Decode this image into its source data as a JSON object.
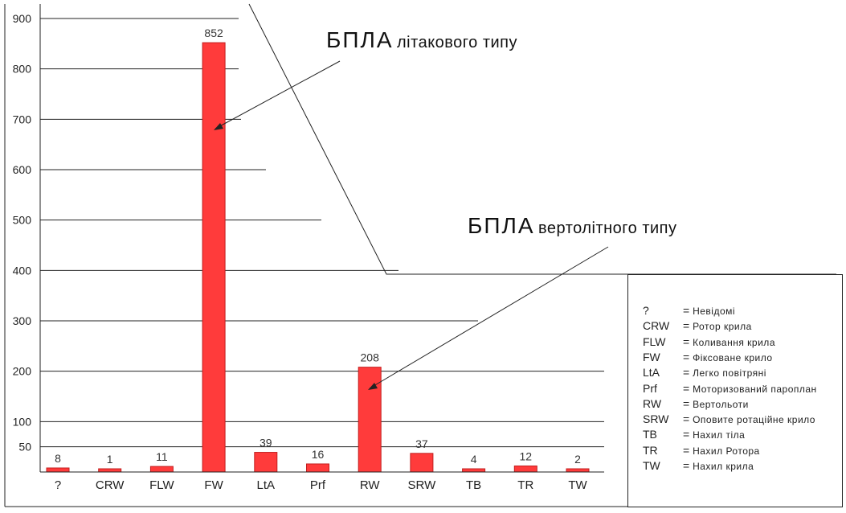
{
  "chart_data": {
    "type": "bar",
    "categories": [
      "?",
      "CRW",
      "FLW",
      "FW",
      "LtA",
      "Prf",
      "RW",
      "SRW",
      "TB",
      "TR",
      "TW"
    ],
    "values": [
      8,
      1,
      11,
      852,
      39,
      16,
      208,
      37,
      4,
      12,
      2
    ],
    "data_labels": [
      "8",
      "1",
      "11",
      "852",
      "39",
      "16",
      "208",
      "37",
      "4",
      "12",
      "2"
    ],
    "y_ticks": [
      50,
      100,
      200,
      300,
      400,
      500,
      600,
      700,
      800,
      900
    ],
    "y_tick_labels": [
      "50",
      "100",
      "200",
      "300",
      "400",
      "500",
      "600",
      "700",
      "800",
      "900"
    ],
    "ylim": [
      0,
      900
    ],
    "grid": true,
    "bar_color": "#ff3b3b",
    "title": "",
    "xlabel": "",
    "ylabel": ""
  },
  "annotations": [
    {
      "big": "БПЛА",
      "small": "літакового типу",
      "target": "FW"
    },
    {
      "big": "БПЛА",
      "small": "вертолітного типу",
      "target": "RW"
    }
  ],
  "legend": {
    "placement": "bottom-right",
    "separator": "=",
    "items": [
      {
        "code": "?",
        "desc": "Невідомі"
      },
      {
        "code": "CRW",
        "desc": "Ротор крила"
      },
      {
        "code": "FLW",
        "desc": "Коливання крила"
      },
      {
        "code": "FW",
        "desc": "Фіксоване крило"
      },
      {
        "code": "LtA",
        "desc": "Легко повітряні"
      },
      {
        "code": "Prf",
        "desc": "Моторизований пароплан"
      },
      {
        "code": "RW",
        "desc": "Вертольоти"
      },
      {
        "code": "SRW",
        "desc": "Оповите ротаційне крило"
      },
      {
        "code": "TB",
        "desc": "Нахил тіла"
      },
      {
        "code": "TR",
        "desc": "Нахил Ротора"
      },
      {
        "code": "TW",
        "desc": "Нахил крила"
      }
    ]
  }
}
